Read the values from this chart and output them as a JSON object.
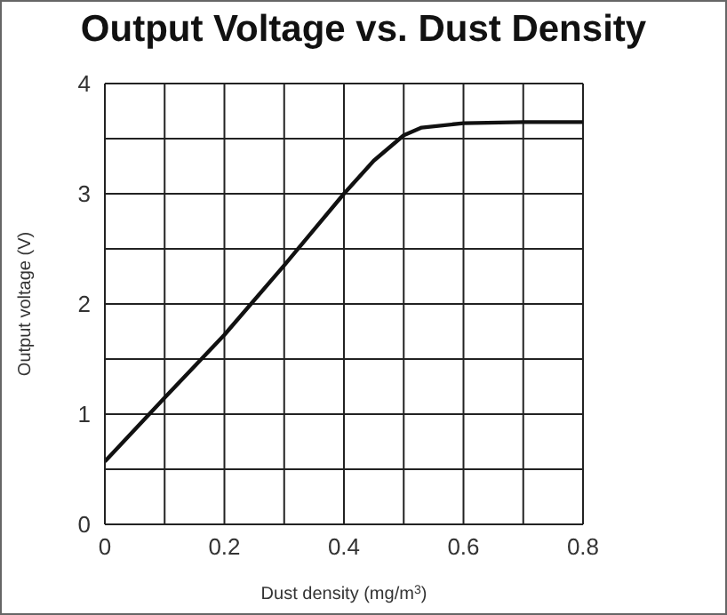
{
  "chart_data": {
    "type": "line",
    "title": "Output Voltage vs. Dust Density",
    "xlabel": "Dust density (mg/m$^{3}$)",
    "ylabel": "Output voltage (V)",
    "x": [
      0,
      0.1,
      0.2,
      0.3,
      0.4,
      0.45,
      0.5,
      0.53,
      0.6,
      0.7,
      0.8
    ],
    "series": [
      {
        "color": "#111111",
        "values": [
          0.57,
          1.15,
          1.72,
          2.35,
          3.0,
          3.3,
          3.53,
          3.6,
          3.64,
          3.65,
          3.65
        ]
      }
    ],
    "xlim": [
      0,
      0.8
    ],
    "xticks": [
      0,
      {
        "value": 0.1,
        "label": null
      },
      0.2,
      {
        "value": 0.3,
        "label": null
      },
      0.4,
      {
        "value": 0.5,
        "label": null
      },
      0.6,
      {
        "value": 0.7,
        "label": null
      },
      0.8
    ],
    "ylim": [
      0,
      4
    ],
    "yticks": [
      0,
      {
        "value": 0.5,
        "label": null
      },
      1,
      {
        "value": 1.5,
        "label": null
      },
      2,
      {
        "value": 2.5,
        "label": null
      },
      3,
      {
        "value": 3.5,
        "label": null
      },
      4
    ],
    "grid": true,
    "marker": "none",
    "line_style": "solid"
  }
}
